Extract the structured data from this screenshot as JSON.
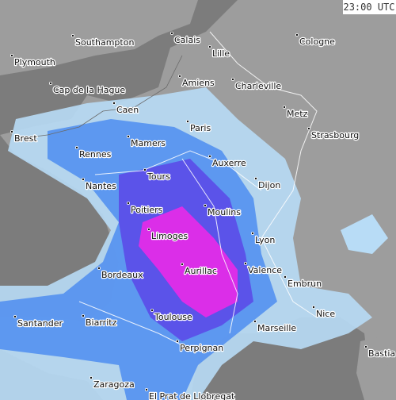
{
  "timestamp": "23:00 UTC",
  "cities": [
    {
      "name": "Southampton"
    },
    {
      "name": "Calais"
    },
    {
      "name": "Lille"
    },
    {
      "name": "Cologne"
    },
    {
      "name": "Plymouth"
    },
    {
      "name": "Amiens"
    },
    {
      "name": "Charleville"
    },
    {
      "name": "Cap de la Hague"
    },
    {
      "name": "Caen"
    },
    {
      "name": "Metz"
    },
    {
      "name": "Paris"
    },
    {
      "name": "Strasbourg"
    },
    {
      "name": "Brest"
    },
    {
      "name": "Mamers"
    },
    {
      "name": "Rennes"
    },
    {
      "name": "Auxerre"
    },
    {
      "name": "Tours"
    },
    {
      "name": "Nantes"
    },
    {
      "name": "Dijon"
    },
    {
      "name": "Poitiers"
    },
    {
      "name": "Moulins"
    },
    {
      "name": "Limoges"
    },
    {
      "name": "Lyon"
    },
    {
      "name": "Aurillac"
    },
    {
      "name": "Valence"
    },
    {
      "name": "Bordeaux"
    },
    {
      "name": "Embrun"
    },
    {
      "name": "Nice"
    },
    {
      "name": "Toulouse"
    },
    {
      "name": "Santander"
    },
    {
      "name": "Biarritz"
    },
    {
      "name": "Marseille"
    },
    {
      "name": "Bastia"
    },
    {
      "name": "Perpignan"
    },
    {
      "name": "Zaragoza"
    },
    {
      "name": "El Prat de Llobregat"
    }
  ]
}
